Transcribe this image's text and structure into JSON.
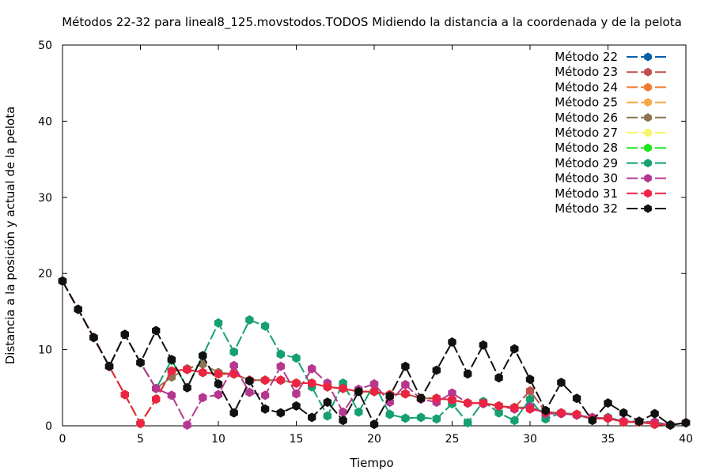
{
  "chart_data": {
    "type": "line",
    "title": "Métodos 22-32 para lineal8_125.movstodos.TODOS Midiendo la distancia a la coordenada y de la pelota",
    "xlabel": "Tiempo",
    "ylabel": "Distancia a la posición y actual de la pelota",
    "xlim": [
      0,
      40
    ],
    "ylim": [
      0,
      50
    ],
    "xticks": [
      0,
      5,
      10,
      15,
      20,
      25,
      30,
      35,
      40
    ],
    "yticks": [
      0,
      10,
      20,
      30,
      40,
      50
    ],
    "grid": false,
    "legend_position": "top-right",
    "x": [
      0,
      1,
      2,
      3,
      4,
      5,
      6,
      7,
      8,
      9,
      10,
      11,
      12,
      13,
      14,
      15,
      16,
      17,
      18,
      19,
      20,
      21,
      22,
      23,
      24,
      25,
      26,
      27,
      28,
      29,
      30,
      31,
      32,
      33,
      34,
      35,
      36,
      37,
      38,
      39,
      40
    ],
    "series": [
      {
        "name": "Método 22",
        "color": "#0a5ea8",
        "values": [
          19,
          15.3,
          11.6,
          7.8,
          4.1,
          0.3,
          3.5,
          7.2,
          7.4,
          7.0,
          6.8,
          6.8,
          6.0,
          6.0,
          6.0,
          5.6,
          5.6,
          5.1,
          4.9,
          4.5,
          4.5,
          4.1,
          4.2,
          3.6,
          3.6,
          3.4,
          3.0,
          3.0,
          2.6,
          2.4,
          2.4,
          1.8,
          1.7,
          1.5,
          0.9,
          1.0,
          0.5,
          0.5,
          0.2,
          0.1,
          0.4
        ]
      },
      {
        "name": "Método 23",
        "color": "#c0504d",
        "values": [
          19,
          15.3,
          11.6,
          7.8,
          4.1,
          0.3,
          3.5,
          7.2,
          7.4,
          7.0,
          6.8,
          6.8,
          6.0,
          6.0,
          6.0,
          5.6,
          5.6,
          5.1,
          4.9,
          4.5,
          4.5,
          4.1,
          4.2,
          3.6,
          3.6,
          3.4,
          3.0,
          3.0,
          2.6,
          2.4,
          4.6,
          1.8,
          1.7,
          1.5,
          0.9,
          1.0,
          0.5,
          0.5,
          0.2,
          0.1,
          0.4
        ]
      },
      {
        "name": "Método 24",
        "color": "#ee7a30",
        "values": [
          19,
          15.3,
          11.6,
          7.8,
          4.1,
          0.3,
          3.5,
          7.2,
          7.4,
          7.0,
          6.8,
          6.8,
          6.0,
          6.0,
          6.0,
          5.6,
          5.6,
          5.1,
          4.9,
          4.5,
          4.5,
          4.1,
          4.2,
          3.6,
          3.6,
          3.4,
          3.0,
          3.0,
          2.6,
          2.4,
          2.4,
          1.8,
          1.7,
          1.5,
          0.9,
          1.0,
          0.5,
          0.5,
          0.2,
          0.1,
          0.4
        ]
      },
      {
        "name": "Método 25",
        "color": "#f7a848",
        "values": [
          19,
          15.3,
          11.6,
          7.8,
          4.1,
          0.3,
          3.5,
          7.2,
          7.4,
          7.0,
          6.8,
          6.8,
          6.0,
          6.0,
          6.0,
          5.6,
          5.6,
          5.1,
          4.9,
          4.5,
          4.5,
          4.1,
          4.2,
          3.6,
          3.6,
          3.4,
          3.0,
          3.0,
          2.6,
          2.4,
          2.4,
          1.8,
          1.7,
          1.5,
          0.9,
          1.0,
          0.5,
          0.5,
          0.2,
          0.1,
          0.4
        ]
      },
      {
        "name": "Método 26",
        "color": "#8b7351",
        "values": [
          19,
          15.3,
          11.6,
          7.8,
          12.0,
          8.3,
          4.9,
          6.4,
          7.5,
          8.1,
          7.0,
          6.8,
          6.0,
          6.0,
          6.0,
          5.6,
          5.6,
          5.1,
          4.9,
          4.5,
          4.5,
          4.1,
          4.2,
          3.6,
          3.6,
          3.4,
          3.0,
          3.0,
          2.6,
          2.4,
          2.4,
          1.8,
          1.7,
          1.5,
          0.9,
          1.0,
          0.5,
          0.5,
          0.2,
          0.1,
          0.4
        ]
      },
      {
        "name": "Método 27",
        "color": "#f5f56a",
        "values": [
          19,
          15.3,
          11.6,
          7.8,
          4.1,
          0.3,
          3.5,
          7.2,
          7.4,
          7.0,
          6.8,
          6.8,
          6.0,
          6.0,
          6.0,
          5.6,
          5.6,
          5.1,
          4.9,
          4.5,
          4.5,
          4.1,
          4.2,
          3.6,
          3.6,
          3.4,
          3.0,
          3.0,
          2.6,
          2.4,
          2.4,
          1.8,
          1.7,
          1.5,
          0.9,
          1.0,
          0.5,
          0.5,
          0.2,
          0.1,
          0.4
        ]
      },
      {
        "name": "Método 28",
        "color": "#1ee61e",
        "values": [
          19,
          15.3,
          11.6,
          7.8,
          4.1,
          0.3,
          3.5,
          7.2,
          7.4,
          7.0,
          6.8,
          6.8,
          6.0,
          6.0,
          6.0,
          5.6,
          5.6,
          5.1,
          4.9,
          4.5,
          4.5,
          4.1,
          4.2,
          3.6,
          3.6,
          3.4,
          3.0,
          3.0,
          2.6,
          2.4,
          2.4,
          1.8,
          1.7,
          1.5,
          0.9,
          1.0,
          0.5,
          0.5,
          0.2,
          0.1,
          0.4
        ]
      },
      {
        "name": "Método 29",
        "color": "#16a070",
        "values": [
          19,
          15.3,
          11.6,
          7.8,
          12.0,
          8.3,
          4.9,
          8.6,
          5.0,
          9.2,
          13.5,
          9.7,
          13.9,
          13.1,
          9.4,
          8.9,
          5.1,
          1.3,
          5.6,
          1.8,
          5.5,
          1.5,
          1.0,
          1.1,
          0.9,
          2.9,
          0.4,
          3.2,
          1.7,
          0.7,
          3.5,
          0.9,
          1.7,
          1.4,
          0.9,
          1.1,
          0.6,
          0.5,
          0.5,
          0.1,
          0.4
        ]
      },
      {
        "name": "Método 30",
        "color": "#b5378f",
        "values": [
          19,
          15.3,
          11.6,
          7.8,
          12.0,
          8.3,
          4.9,
          4.0,
          0.1,
          3.7,
          4.1,
          7.9,
          4.4,
          4.0,
          7.8,
          4.2,
          7.5,
          5.6,
          1.8,
          4.8,
          5.5,
          3.1,
          5.4,
          3.5,
          3.1,
          4.3,
          3.0,
          2.9,
          2.6,
          2.2,
          2.5,
          1.6,
          1.6,
          1.4,
          1.1,
          1.0,
          0.6,
          0.6,
          0.5,
          0.1,
          0.4
        ]
      },
      {
        "name": "Método 31",
        "color": "#ee2244",
        "values": [
          19,
          15.3,
          11.6,
          7.8,
          4.1,
          0.3,
          3.5,
          7.2,
          7.4,
          7.0,
          6.8,
          6.8,
          6.0,
          6.0,
          6.0,
          5.6,
          5.6,
          5.1,
          4.9,
          4.5,
          4.5,
          4.1,
          4.2,
          3.6,
          3.6,
          3.4,
          3.0,
          3.0,
          2.6,
          2.4,
          2.2,
          1.8,
          1.7,
          1.5,
          0.9,
          1.0,
          0.5,
          0.5,
          0.2,
          0.1,
          0.4
        ]
      },
      {
        "name": "Método 32",
        "color": "#111111",
        "values": [
          19,
          15.3,
          11.6,
          7.8,
          12.0,
          8.3,
          12.5,
          8.7,
          5.0,
          9.2,
          5.5,
          1.7,
          5.9,
          2.2,
          1.7,
          2.6,
          1.1,
          3.1,
          0.7,
          4.5,
          0.2,
          3.9,
          7.8,
          3.6,
          7.3,
          11.0,
          6.8,
          10.6,
          6.3,
          10.1,
          6.1,
          2.0,
          5.7,
          3.6,
          0.7,
          3.0,
          1.7,
          0.6,
          1.6,
          0.1,
          0.4
        ]
      }
    ]
  }
}
